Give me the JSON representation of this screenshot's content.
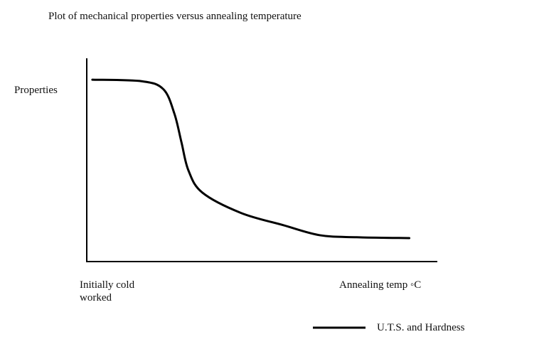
{
  "chart_data": {
    "type": "line",
    "title": "Plot of mechanical properties versus annealing temperature",
    "ylabel": "Properties",
    "xlabel": "Annealing temp ◦C",
    "x_start_label": "Initially cold worked",
    "x_start_label_lines": [
      "Initially cold",
      "worked"
    ],
    "xlim": [
      0,
      100
    ],
    "ylim": [
      0,
      100
    ],
    "grid": false,
    "legend_placement": "bottom-right",
    "series": [
      {
        "name": "U.T.S. and Hardness",
        "color": "#000000",
        "x": [
          1.6,
          15.8,
          21.9,
          25,
          27,
          29,
          33,
          44,
          56,
          66.5,
          77,
          92
        ],
        "y": [
          89.8,
          89,
          85,
          73,
          59,
          45,
          34,
          24,
          18,
          13,
          12,
          11.6
        ]
      }
    ]
  }
}
